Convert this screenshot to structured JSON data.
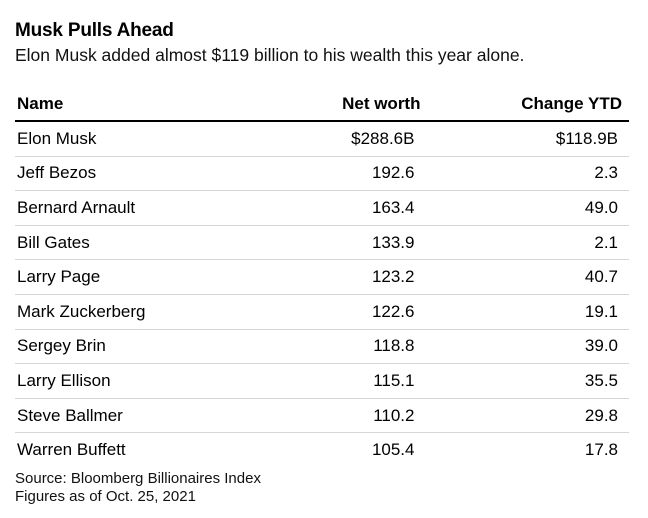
{
  "header": {
    "title": "Musk Pulls Ahead",
    "subtitle": "Elon Musk added almost $119 billion to his wealth this year alone."
  },
  "footer": {
    "source": "Source: Bloomberg Billionaires Index",
    "note": "Figures as of Oct. 25, 2021"
  },
  "chart_data": {
    "type": "table",
    "title": "Musk Pulls Ahead",
    "columns": [
      "Name",
      "Net worth",
      "Change YTD"
    ],
    "rows": [
      {
        "name": "Elon Musk",
        "net_worth": "$288.6B",
        "change_ytd": "$118.9B"
      },
      {
        "name": "Jeff Bezos",
        "net_worth": "192.6",
        "change_ytd": "2.3"
      },
      {
        "name": "Bernard Arnault",
        "net_worth": "163.4",
        "change_ytd": "49.0"
      },
      {
        "name": "Bill Gates",
        "net_worth": "133.9",
        "change_ytd": "2.1"
      },
      {
        "name": "Larry Page",
        "net_worth": "123.2",
        "change_ytd": "40.7"
      },
      {
        "name": "Mark Zuckerberg",
        "net_worth": "122.6",
        "change_ytd": "19.1"
      },
      {
        "name": "Sergey Brin",
        "net_worth": "118.8",
        "change_ytd": "39.0"
      },
      {
        "name": "Larry Ellison",
        "net_worth": "115.1",
        "change_ytd": "35.5"
      },
      {
        "name": "Steve Ballmer",
        "net_worth": "110.2",
        "change_ytd": "29.8"
      },
      {
        "name": "Warren Buffett",
        "net_worth": "105.4",
        "change_ytd": "17.8"
      }
    ]
  }
}
